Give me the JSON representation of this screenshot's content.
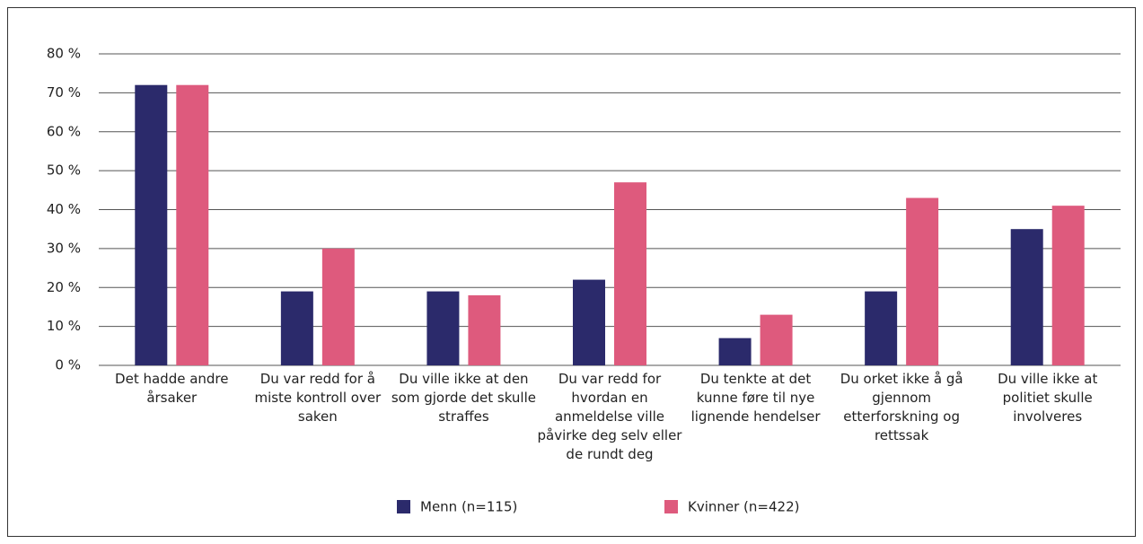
{
  "chart_data": {
    "type": "bar",
    "categories": [
      "Det hadde andre årsaker",
      "Du var redd for å miste kontroll over saken",
      "Du ville ikke at den som gjorde det skulle straffes",
      "Du var redd for hvordan en anmeldelse ville påvirke deg selv eller de rundt deg",
      "Du tenkte at det kunne føre til nye lignende hendelser",
      "Du orket ikke å gå gjennom etterforskning og rettssak",
      "Du ville ikke at politiet skulle involveres"
    ],
    "series": [
      {
        "name": "Menn (n=115)",
        "color": "#2b2a6b",
        "values": [
          72,
          19,
          19,
          22,
          7,
          19,
          35
        ]
      },
      {
        "name": "Kvinner (n=422)",
        "color": "#de5a7d",
        "values": [
          72,
          30,
          18,
          47,
          13,
          43,
          41
        ]
      }
    ],
    "ylim": [
      0,
      80
    ],
    "yticks": [
      {
        "value": 0,
        "label": "0 %"
      },
      {
        "value": 10,
        "label": "10 %"
      },
      {
        "value": 20,
        "label": "20 %"
      },
      {
        "value": 30,
        "label": "30 %"
      },
      {
        "value": 40,
        "label": "40 %"
      },
      {
        "value": 50,
        "label": "50 %"
      },
      {
        "value": 60,
        "label": "60 %"
      },
      {
        "value": 70,
        "label": "70 %"
      },
      {
        "value": 80,
        "label": "80 %"
      }
    ],
    "grid": true,
    "legend": "bottom"
  }
}
